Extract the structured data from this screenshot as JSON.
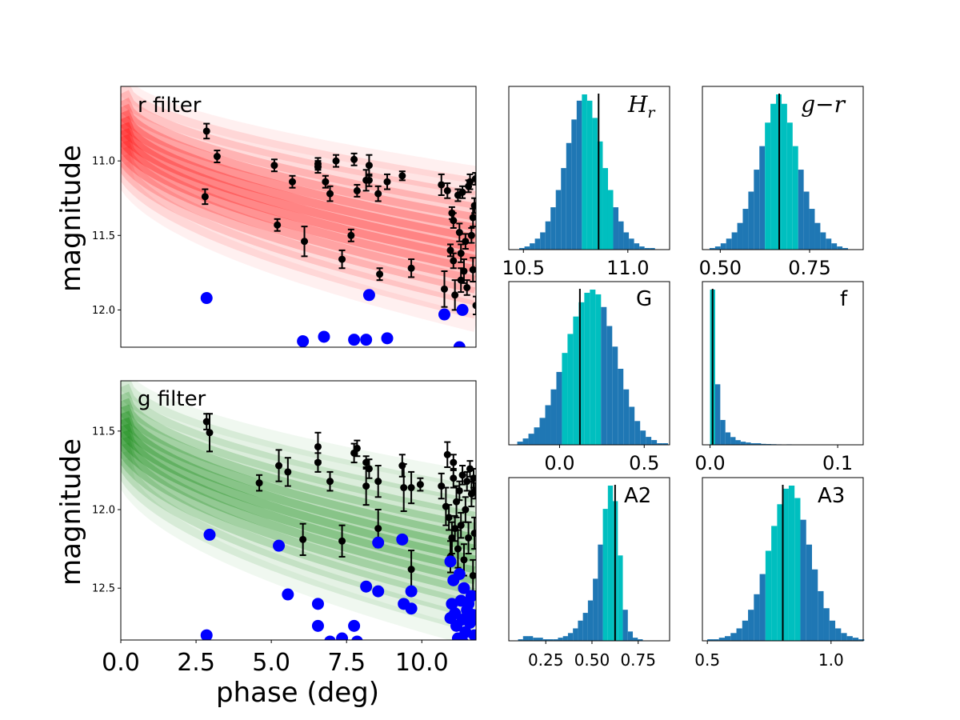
{
  "colors": {
    "r_band": "#ff0000",
    "g_band": "#008000",
    "points": "#000000",
    "blue": "#0000ff",
    "hist_base": "#1f77b4",
    "hist_center": "#00bfbf",
    "median_line": "#000000"
  },
  "chart_data": [
    {
      "id": "r",
      "type": "scatter",
      "label": "r filter",
      "band_color": "r_band",
      "xlabel": "",
      "ylabel": "magnitude",
      "xlim": [
        0,
        11.8
      ],
      "ylim": [
        12.25,
        10.5
      ],
      "xticks": [],
      "yticks": [
        11.0,
        11.5,
        12.0
      ],
      "ytick_labels": [
        "11.0",
        "11.5",
        "12.0"
      ],
      "band_curves": [
        {
          "H": 10.45,
          "a": 0.55,
          "alpha": 0.06
        },
        {
          "H": 10.5,
          "a": 0.58,
          "alpha": 0.1
        },
        {
          "H": 10.55,
          "a": 0.62,
          "alpha": 0.14
        },
        {
          "H": 10.6,
          "a": 0.65,
          "alpha": 0.18
        },
        {
          "H": 10.64,
          "a": 0.68,
          "alpha": 0.22
        },
        {
          "H": 10.68,
          "a": 0.71,
          "alpha": 0.26
        },
        {
          "H": 10.72,
          "a": 0.74,
          "alpha": 0.28
        },
        {
          "H": 10.76,
          "a": 0.77,
          "alpha": 0.28
        },
        {
          "H": 10.8,
          "a": 0.8,
          "alpha": 0.26
        },
        {
          "H": 10.84,
          "a": 0.83,
          "alpha": 0.22
        },
        {
          "H": 10.88,
          "a": 0.86,
          "alpha": 0.18
        },
        {
          "H": 10.92,
          "a": 0.9,
          "alpha": 0.14
        },
        {
          "H": 10.97,
          "a": 0.94,
          "alpha": 0.1
        },
        {
          "H": 11.02,
          "a": 0.98,
          "alpha": 0.06
        }
      ],
      "points": [
        {
          "x": 2.85,
          "y": 10.8,
          "e": 0.05
        },
        {
          "x": 2.8,
          "y": 11.24,
          "e": 0.05
        },
        {
          "x": 3.2,
          "y": 10.97,
          "e": 0.04
        },
        {
          "x": 5.1,
          "y": 11.03,
          "e": 0.04
        },
        {
          "x": 5.2,
          "y": 11.43,
          "e": 0.04
        },
        {
          "x": 5.7,
          "y": 11.14,
          "e": 0.04
        },
        {
          "x": 6.1,
          "y": 11.54,
          "e": 0.1
        },
        {
          "x": 6.55,
          "y": 11.04,
          "e": 0.04
        },
        {
          "x": 6.55,
          "y": 11.02,
          "e": 0.04
        },
        {
          "x": 6.8,
          "y": 11.14,
          "e": 0.04
        },
        {
          "x": 6.95,
          "y": 11.22,
          "e": 0.05
        },
        {
          "x": 7.15,
          "y": 11.0,
          "e": 0.04
        },
        {
          "x": 7.35,
          "y": 11.66,
          "e": 0.06
        },
        {
          "x": 7.65,
          "y": 11.5,
          "e": 0.04
        },
        {
          "x": 7.75,
          "y": 10.99,
          "e": 0.04
        },
        {
          "x": 7.85,
          "y": 11.2,
          "e": 0.04
        },
        {
          "x": 8.15,
          "y": 11.13,
          "e": 0.07
        },
        {
          "x": 8.25,
          "y": 11.03,
          "e": 0.07
        },
        {
          "x": 8.25,
          "y": 11.13,
          "e": 0.04
        },
        {
          "x": 8.55,
          "y": 11.22,
          "e": 0.05
        },
        {
          "x": 8.6,
          "y": 11.76,
          "e": 0.04
        },
        {
          "x": 8.85,
          "y": 11.14,
          "e": 0.05
        },
        {
          "x": 9.35,
          "y": 11.1,
          "e": 0.03
        },
        {
          "x": 9.65,
          "y": 11.72,
          "e": 0.06
        },
        {
          "x": 10.65,
          "y": 11.16,
          "e": 0.07
        },
        {
          "x": 10.75,
          "y": 11.86,
          "e": 0.12
        },
        {
          "x": 10.85,
          "y": 11.2,
          "e": 0.05
        },
        {
          "x": 10.95,
          "y": 11.6,
          "e": 0.04
        },
        {
          "x": 11.0,
          "y": 11.35,
          "e": 0.04
        },
        {
          "x": 11.05,
          "y": 11.4,
          "e": 0.05
        },
        {
          "x": 11.05,
          "y": 11.67,
          "e": 0.05
        },
        {
          "x": 11.1,
          "y": 11.9,
          "e": 0.1
        },
        {
          "x": 11.2,
          "y": 11.23,
          "e": 0.04
        },
        {
          "x": 11.25,
          "y": 11.48,
          "e": 0.06
        },
        {
          "x": 11.3,
          "y": 11.62,
          "e": 0.06
        },
        {
          "x": 11.3,
          "y": 11.8,
          "e": 0.08
        },
        {
          "x": 11.35,
          "y": 11.21,
          "e": 0.04
        },
        {
          "x": 11.4,
          "y": 11.74,
          "e": 0.08
        },
        {
          "x": 11.45,
          "y": 11.54,
          "e": 0.05
        },
        {
          "x": 11.5,
          "y": 11.85,
          "e": 0.05
        },
        {
          "x": 11.55,
          "y": 11.17,
          "e": 0.04
        },
        {
          "x": 11.6,
          "y": 11.14,
          "e": 0.05
        },
        {
          "x": 11.65,
          "y": 11.5,
          "e": 0.05
        },
        {
          "x": 11.7,
          "y": 11.38,
          "e": 0.06
        },
        {
          "x": 11.7,
          "y": 11.73,
          "e": 0.08
        },
        {
          "x": 11.75,
          "y": 11.3,
          "e": 0.05
        },
        {
          "x": 11.78,
          "y": 11.12,
          "e": 0.04
        },
        {
          "x": 11.8,
          "y": 11.97,
          "e": 0.06
        }
      ],
      "blue_points": [
        {
          "x": 2.85,
          "y": 11.92
        },
        {
          "x": 8.25,
          "y": 11.9
        },
        {
          "x": 10.75,
          "y": 12.03
        },
        {
          "x": 11.35,
          "y": 12.0
        },
        {
          "x": 6.05,
          "y": 12.21
        },
        {
          "x": 6.75,
          "y": 12.18
        },
        {
          "x": 7.75,
          "y": 12.2
        },
        {
          "x": 8.15,
          "y": 12.2
        },
        {
          "x": 8.85,
          "y": 12.19
        },
        {
          "x": 11.25,
          "y": 12.25
        }
      ]
    },
    {
      "id": "g",
      "type": "scatter",
      "label": "g filter",
      "band_color": "g_band",
      "xlabel": "phase (deg)",
      "ylabel": "magnitude",
      "xlim": [
        0,
        11.8
      ],
      "ylim": [
        12.83,
        11.18
      ],
      "xticks": [
        0.0,
        2.5,
        5.0,
        7.5,
        10.0
      ],
      "xtick_labels": [
        "0.0",
        "2.5",
        "5.0",
        "7.5",
        "10.0"
      ],
      "yticks": [
        11.5,
        12.0,
        12.5
      ],
      "ytick_labels": [
        "11.5",
        "12.0",
        "12.5"
      ],
      "band_curves": [
        {
          "H": 11.12,
          "a": 0.6,
          "alpha": 0.06
        },
        {
          "H": 11.17,
          "a": 0.64,
          "alpha": 0.1
        },
        {
          "H": 11.22,
          "a": 0.68,
          "alpha": 0.14
        },
        {
          "H": 11.27,
          "a": 0.71,
          "alpha": 0.18
        },
        {
          "H": 11.31,
          "a": 0.74,
          "alpha": 0.22
        },
        {
          "H": 11.35,
          "a": 0.77,
          "alpha": 0.26
        },
        {
          "H": 11.39,
          "a": 0.8,
          "alpha": 0.28
        },
        {
          "H": 11.43,
          "a": 0.83,
          "alpha": 0.28
        },
        {
          "H": 11.47,
          "a": 0.86,
          "alpha": 0.26
        },
        {
          "H": 11.51,
          "a": 0.89,
          "alpha": 0.22
        },
        {
          "H": 11.55,
          "a": 0.92,
          "alpha": 0.18
        },
        {
          "H": 11.59,
          "a": 0.96,
          "alpha": 0.14
        },
        {
          "H": 11.64,
          "a": 1.0,
          "alpha": 0.1
        },
        {
          "H": 11.69,
          "a": 1.04,
          "alpha": 0.06
        }
      ],
      "points": [
        {
          "x": 2.85,
          "y": 11.44,
          "e": 0.05
        },
        {
          "x": 2.95,
          "y": 11.51,
          "e": 0.12
        },
        {
          "x": 4.6,
          "y": 11.83,
          "e": 0.05
        },
        {
          "x": 5.25,
          "y": 11.72,
          "e": 0.1
        },
        {
          "x": 5.55,
          "y": 11.76,
          "e": 0.09
        },
        {
          "x": 6.05,
          "y": 12.19,
          "e": 0.1
        },
        {
          "x": 6.55,
          "y": 11.6,
          "e": 0.09
        },
        {
          "x": 6.55,
          "y": 11.7,
          "e": 0.06
        },
        {
          "x": 6.95,
          "y": 11.82,
          "e": 0.06
        },
        {
          "x": 7.35,
          "y": 12.2,
          "e": 0.1
        },
        {
          "x": 7.75,
          "y": 11.64,
          "e": 0.06
        },
        {
          "x": 7.85,
          "y": 11.61,
          "e": 0.05
        },
        {
          "x": 8.15,
          "y": 11.7,
          "e": 0.04
        },
        {
          "x": 8.15,
          "y": 11.85,
          "e": 0.12
        },
        {
          "x": 8.25,
          "y": 11.74,
          "e": 0.06
        },
        {
          "x": 8.55,
          "y": 11.82,
          "e": 0.1
        },
        {
          "x": 8.55,
          "y": 12.12,
          "e": 0.12
        },
        {
          "x": 9.35,
          "y": 11.72,
          "e": 0.07
        },
        {
          "x": 9.4,
          "y": 11.86,
          "e": 0.15
        },
        {
          "x": 9.65,
          "y": 11.86,
          "e": 0.1
        },
        {
          "x": 9.65,
          "y": 12.38,
          "e": 0.12
        },
        {
          "x": 9.95,
          "y": 11.84,
          "e": 0.04
        },
        {
          "x": 10.65,
          "y": 11.85,
          "e": 0.08
        },
        {
          "x": 10.8,
          "y": 11.98,
          "e": 0.12
        },
        {
          "x": 10.85,
          "y": 11.65,
          "e": 0.08
        },
        {
          "x": 10.9,
          "y": 12.05,
          "e": 0.08
        },
        {
          "x": 10.95,
          "y": 12.3,
          "e": 0.1
        },
        {
          "x": 11.0,
          "y": 12.18,
          "e": 0.1
        },
        {
          "x": 11.05,
          "y": 11.8,
          "e": 0.06
        },
        {
          "x": 11.05,
          "y": 11.7,
          "e": 0.05
        },
        {
          "x": 11.1,
          "y": 12.12,
          "e": 0.08
        },
        {
          "x": 11.15,
          "y": 11.95,
          "e": 0.1
        },
        {
          "x": 11.2,
          "y": 12.25,
          "e": 0.12
        },
        {
          "x": 11.25,
          "y": 11.88,
          "e": 0.06
        },
        {
          "x": 11.3,
          "y": 12.1,
          "e": 0.08
        },
        {
          "x": 11.35,
          "y": 11.78,
          "e": 0.06
        },
        {
          "x": 11.4,
          "y": 12.32,
          "e": 0.1
        },
        {
          "x": 11.45,
          "y": 12.0,
          "e": 0.08
        },
        {
          "x": 11.5,
          "y": 11.82,
          "e": 0.06
        },
        {
          "x": 11.55,
          "y": 12.18,
          "e": 0.1
        },
        {
          "x": 11.6,
          "y": 11.74,
          "e": 0.05
        },
        {
          "x": 11.65,
          "y": 11.9,
          "e": 0.08
        },
        {
          "x": 11.7,
          "y": 12.42,
          "e": 0.1
        },
        {
          "x": 11.72,
          "y": 11.8,
          "e": 0.06
        },
        {
          "x": 11.75,
          "y": 12.15,
          "e": 0.1
        },
        {
          "x": 11.78,
          "y": 11.88,
          "e": 0.05
        }
      ],
      "blue_points": [
        {
          "x": 2.95,
          "y": 12.16
        },
        {
          "x": 5.25,
          "y": 12.23
        },
        {
          "x": 5.55,
          "y": 12.54
        },
        {
          "x": 6.55,
          "y": 12.6
        },
        {
          "x": 6.55,
          "y": 12.74
        },
        {
          "x": 7.75,
          "y": 12.74
        },
        {
          "x": 8.15,
          "y": 12.49
        },
        {
          "x": 8.55,
          "y": 12.21
        },
        {
          "x": 8.55,
          "y": 12.52
        },
        {
          "x": 9.35,
          "y": 12.19
        },
        {
          "x": 9.4,
          "y": 12.6
        },
        {
          "x": 9.65,
          "y": 12.52
        },
        {
          "x": 9.65,
          "y": 12.63
        },
        {
          "x": 2.85,
          "y": 12.8
        },
        {
          "x": 6.95,
          "y": 12.84
        },
        {
          "x": 7.35,
          "y": 12.82
        },
        {
          "x": 7.85,
          "y": 12.84
        },
        {
          "x": 10.95,
          "y": 12.33
        },
        {
          "x": 11.05,
          "y": 12.45
        },
        {
          "x": 11.0,
          "y": 12.6
        },
        {
          "x": 11.1,
          "y": 12.66
        },
        {
          "x": 10.95,
          "y": 12.69
        },
        {
          "x": 11.15,
          "y": 12.74
        },
        {
          "x": 11.25,
          "y": 12.41
        },
        {
          "x": 11.3,
          "y": 12.58
        },
        {
          "x": 11.35,
          "y": 12.7
        },
        {
          "x": 11.4,
          "y": 12.5
        },
        {
          "x": 11.5,
          "y": 12.64
        },
        {
          "x": 11.45,
          "y": 12.78
        },
        {
          "x": 11.55,
          "y": 12.6
        },
        {
          "x": 11.6,
          "y": 12.72
        },
        {
          "x": 11.65,
          "y": 12.55
        },
        {
          "x": 11.7,
          "y": 12.67
        },
        {
          "x": 11.75,
          "y": 12.8
        },
        {
          "x": 11.2,
          "y": 12.82
        },
        {
          "x": 11.35,
          "y": 12.84
        }
      ]
    },
    {
      "id": "Hr",
      "type": "histogram",
      "label": "H_r",
      "xlim": [
        10.43,
        11.2
      ],
      "xticks": [
        10.5,
        11.0
      ],
      "xtick_labels": [
        "10.5",
        "11.0"
      ],
      "bin_start": 10.48,
      "bin_width": 0.025,
      "counts": [
        1,
        2,
        4,
        7,
        11,
        18,
        27,
        38,
        52,
        68,
        83,
        95,
        99,
        95,
        84,
        69,
        52,
        38,
        27,
        18,
        11,
        7,
        4,
        2,
        1,
        1
      ],
      "center_range": [
        10.78,
        10.93
      ],
      "median": 10.86
    },
    {
      "id": "gr",
      "type": "histogram",
      "label": "g−r",
      "xlim": [
        0.45,
        0.9
      ],
      "xticks": [
        0.5,
        0.75
      ],
      "xtick_labels": [
        "0.50",
        "0.75"
      ],
      "bin_start": 0.47,
      "bin_width": 0.0155,
      "counts": [
        1,
        2,
        4,
        7,
        11,
        17,
        26,
        37,
        51,
        66,
        81,
        93,
        99,
        93,
        81,
        66,
        51,
        37,
        26,
        17,
        11,
        7,
        4,
        2,
        1
      ],
      "center_range": [
        0.623,
        0.716
      ],
      "median": 0.665
    },
    {
      "id": "G",
      "type": "histogram",
      "label": "G",
      "xlim": [
        -0.3,
        0.65
      ],
      "xticks": [
        0.0,
        0.5
      ],
      "xtick_labels": [
        "0.0",
        "0.5"
      ],
      "bin_start": -0.25,
      "bin_width": 0.033,
      "counts": [
        2,
        4,
        7,
        11,
        17,
        25,
        35,
        46,
        58,
        70,
        81,
        90,
        96,
        98,
        95,
        87,
        75,
        62,
        48,
        35,
        24,
        15,
        9,
        5,
        3,
        1,
        1
      ],
      "center_range": [
        0.014,
        0.245
      ],
      "median": 0.12
    },
    {
      "id": "f",
      "type": "histogram",
      "label": "f",
      "xlim": [
        -0.006,
        0.12
      ],
      "xticks": [
        0.0,
        0.1
      ],
      "xtick_labels": [
        "0.0",
        "0.1"
      ],
      "bin_start": 0.0,
      "bin_width": 0.004,
      "counts": [
        100,
        39,
        16,
        8,
        5,
        3,
        2,
        1.5,
        1,
        1,
        0.6,
        0.5,
        0.4,
        0.3,
        0,
        0.3,
        0,
        0,
        0,
        0,
        0,
        0,
        0,
        0,
        0,
        0,
        0,
        0
      ],
      "center_range": [
        0.0,
        0.004
      ],
      "median": 0.002
    },
    {
      "id": "A2",
      "type": "histogram",
      "label": "A2",
      "xlim": [
        0.05,
        0.92
      ],
      "xticks": [
        0.25,
        0.5,
        0.75
      ],
      "xtick_labels": [
        "0.25",
        "0.50",
        "0.75"
      ],
      "bin_start": 0.1,
      "bin_width": 0.027,
      "counts": [
        1,
        3,
        3,
        2,
        2,
        1,
        1,
        1,
        2,
        3,
        5,
        8,
        13,
        18,
        26,
        40,
        62,
        85,
        100,
        90,
        55,
        20,
        6,
        2,
        1
      ],
      "center_range": [
        0.559,
        0.667
      ],
      "median": 0.625
    },
    {
      "id": "A3",
      "type": "histogram",
      "label": "A3",
      "xlim": [
        0.48,
        1.13
      ],
      "xticks": [
        0.5,
        1.0
      ],
      "xtick_labels": [
        "0.5",
        "1.0"
      ],
      "bin_start": 0.5,
      "bin_width": 0.0235,
      "counts": [
        1,
        1,
        2,
        3,
        5,
        8,
        13,
        20,
        30,
        43,
        58,
        74,
        88,
        98,
        100,
        92,
        78,
        62,
        46,
        32,
        21,
        13,
        8,
        5,
        3,
        2,
        1
      ],
      "center_range": [
        0.735,
        0.876
      ],
      "median": 0.805
    }
  ]
}
